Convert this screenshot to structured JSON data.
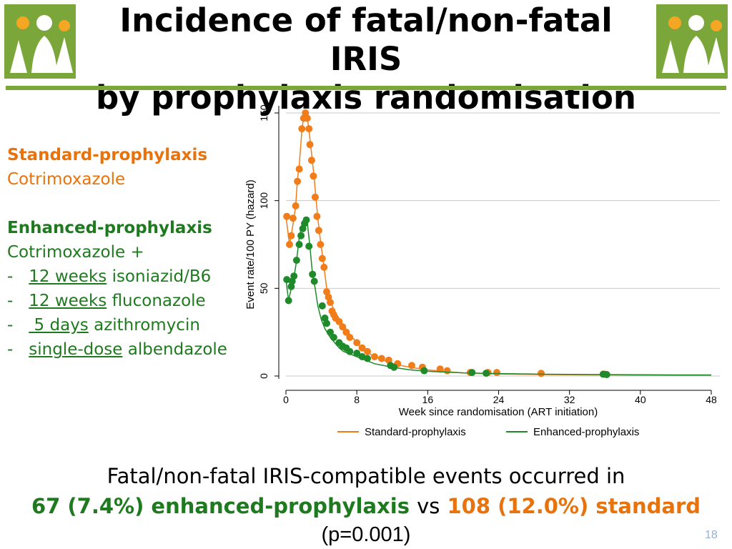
{
  "title_line1": "Incidence of fatal/non-fatal IRIS",
  "title_line2": "by prophylaxis randomisation",
  "arms": {
    "standard_heading": "Standard-prophylaxis",
    "standard_drug": "Cotrimoxazole",
    "enhanced_heading": "Enhanced-prophylaxis",
    "enhanced_drug": "Cotrimoxazole +",
    "items": [
      {
        "dash": "-",
        "duration": "12 weeks",
        "drug": "isoniazid/B6"
      },
      {
        "dash": "-",
        "duration": "12 weeks",
        "drug": "fluconazole"
      },
      {
        "dash": "-",
        "duration": " 5 days",
        "drug": "azithromycin"
      },
      {
        "dash": "-",
        "duration": "single-dose",
        "drug": "albendazole"
      }
    ]
  },
  "chart_data": {
    "type": "line",
    "xlabel": "Week since randomisation (ART initiation)",
    "ylabel": "Event rate/100 PY (hazard)",
    "xlim": [
      0,
      48
    ],
    "ylim": [
      0,
      150
    ],
    "x_ticks": [
      "0",
      "8",
      "16",
      "24",
      "32",
      "40",
      "48"
    ],
    "y_ticks": [
      "0",
      "50",
      "100",
      "150"
    ],
    "grid": true,
    "legend_position": "bottom",
    "series": [
      {
        "name": "Standard-prophylaxis",
        "color": "#f07d1a",
        "x": [
          0,
          0.4,
          0.6,
          0.9,
          1.1,
          1.3,
          1.5,
          1.8,
          2.0,
          2.2,
          2.4,
          2.6,
          2.8,
          3.0,
          3.2,
          3.4,
          3.6,
          3.8,
          4.0,
          4.2,
          4.6,
          5.0,
          5.4,
          5.8,
          6.2,
          6.6,
          7.0,
          7.5,
          8.0,
          8.5,
          9.0,
          10.0,
          11.0,
          12.0,
          14.0,
          16.0,
          18.0,
          20.0,
          22.0,
          24.0,
          28.0,
          32.0,
          36.0,
          40.0,
          44.0,
          48.0
        ],
        "y": [
          91,
          75,
          80,
          90,
          97,
          112,
          120,
          140,
          148,
          150,
          148,
          140,
          131,
          122,
          112,
          101,
          90,
          81,
          73,
          66,
          50,
          43,
          38,
          34,
          31,
          28,
          25,
          22,
          19,
          16,
          14,
          11,
          9,
          7,
          5,
          3.5,
          2.5,
          1.8,
          1.4,
          1.1,
          0.9,
          0.7,
          0.6,
          0.5,
          0.4,
          0.4
        ],
        "markers": [
          [
            0.1,
            91
          ],
          [
            0.4,
            75
          ],
          [
            0.6,
            80
          ],
          [
            0.8,
            90
          ],
          [
            1.1,
            97
          ],
          [
            1.3,
            111
          ],
          [
            1.5,
            118
          ],
          [
            1.8,
            141
          ],
          [
            2.0,
            147
          ],
          [
            2.2,
            150
          ],
          [
            2.4,
            147
          ],
          [
            2.6,
            141
          ],
          [
            2.7,
            132
          ],
          [
            2.9,
            123
          ],
          [
            3.1,
            114
          ],
          [
            3.3,
            102
          ],
          [
            3.5,
            91
          ],
          [
            3.7,
            83
          ],
          [
            3.9,
            75
          ],
          [
            4.1,
            67
          ],
          [
            4.3,
            62
          ],
          [
            4.6,
            48
          ],
          [
            4.8,
            45
          ],
          [
            5.0,
            42
          ],
          [
            5.2,
            37
          ],
          [
            5.4,
            35
          ],
          [
            5.6,
            33
          ],
          [
            6.0,
            31
          ],
          [
            6.4,
            28
          ],
          [
            6.8,
            25
          ],
          [
            7.2,
            22
          ],
          [
            8.0,
            19
          ],
          [
            8.6,
            16
          ],
          [
            9.2,
            14
          ],
          [
            10.0,
            11
          ],
          [
            10.8,
            10
          ],
          [
            11.6,
            9
          ],
          [
            12.6,
            7
          ],
          [
            14.2,
            6
          ],
          [
            15.4,
            5
          ],
          [
            17.4,
            4
          ],
          [
            18.2,
            3
          ],
          [
            20.8,
            2
          ],
          [
            22.8,
            2
          ],
          [
            23.8,
            2
          ],
          [
            28.8,
            1.5
          ],
          [
            36.0,
            1
          ]
        ]
      },
      {
        "name": "Enhanced-prophylaxis",
        "color": "#1f8a2a",
        "x": [
          0,
          0.3,
          0.6,
          0.9,
          1.2,
          1.5,
          1.8,
          2.1,
          2.4,
          2.7,
          3.0,
          3.3,
          3.6,
          4.0,
          4.4,
          5.0,
          5.5,
          6.0,
          6.5,
          7.0,
          8.0,
          9.0,
          10.0,
          12.0,
          14.0,
          16.0,
          20.0,
          24.0,
          28.0,
          32.0,
          36.0,
          40.0,
          44.0,
          48.0
        ],
        "y": [
          55,
          43,
          50,
          56,
          66,
          79,
          86,
          89,
          88,
          74,
          58,
          50,
          40,
          32,
          27,
          22,
          19,
          16,
          14,
          13,
          11,
          9,
          7,
          5,
          3.5,
          2.7,
          1.8,
          1.4,
          1.1,
          0.9,
          0.8,
          0.7,
          0.6,
          0.6
        ],
        "markers": [
          [
            0.1,
            55
          ],
          [
            0.3,
            43
          ],
          [
            0.6,
            51
          ],
          [
            0.7,
            54
          ],
          [
            0.9,
            57
          ],
          [
            1.2,
            66
          ],
          [
            1.5,
            75
          ],
          [
            1.7,
            80
          ],
          [
            1.9,
            84
          ],
          [
            2.1,
            87
          ],
          [
            2.3,
            89
          ],
          [
            2.6,
            74
          ],
          [
            3.0,
            58
          ],
          [
            3.2,
            54
          ],
          [
            4.1,
            40
          ],
          [
            4.4,
            33
          ],
          [
            4.6,
            30
          ],
          [
            5.0,
            25
          ],
          [
            5.4,
            22
          ],
          [
            6.0,
            19
          ],
          [
            6.4,
            17
          ],
          [
            6.8,
            16
          ],
          [
            7.2,
            14
          ],
          [
            8.0,
            13
          ],
          [
            8.6,
            11
          ],
          [
            9.2,
            10
          ],
          [
            11.8,
            6
          ],
          [
            12.2,
            5
          ],
          [
            15.6,
            3
          ],
          [
            21.0,
            2
          ],
          [
            22.6,
            1.6
          ],
          [
            35.8,
            1
          ],
          [
            36.2,
            0.8
          ]
        ]
      }
    ]
  },
  "summary": {
    "line1": "Fatal/non-fatal IRIS-compatible events occurred in",
    "enhanced_count": "67 (7.4%) enhanced-prophylaxis",
    "vs": "vs",
    "standard_count": "108 (12.0%) standard",
    "pvalue": "(p=0.001)"
  },
  "page_number": "18",
  "colors": {
    "accent_green": "#7aa63a",
    "enhanced_text": "#1f7a1f",
    "standard_text": "#e8720c"
  }
}
